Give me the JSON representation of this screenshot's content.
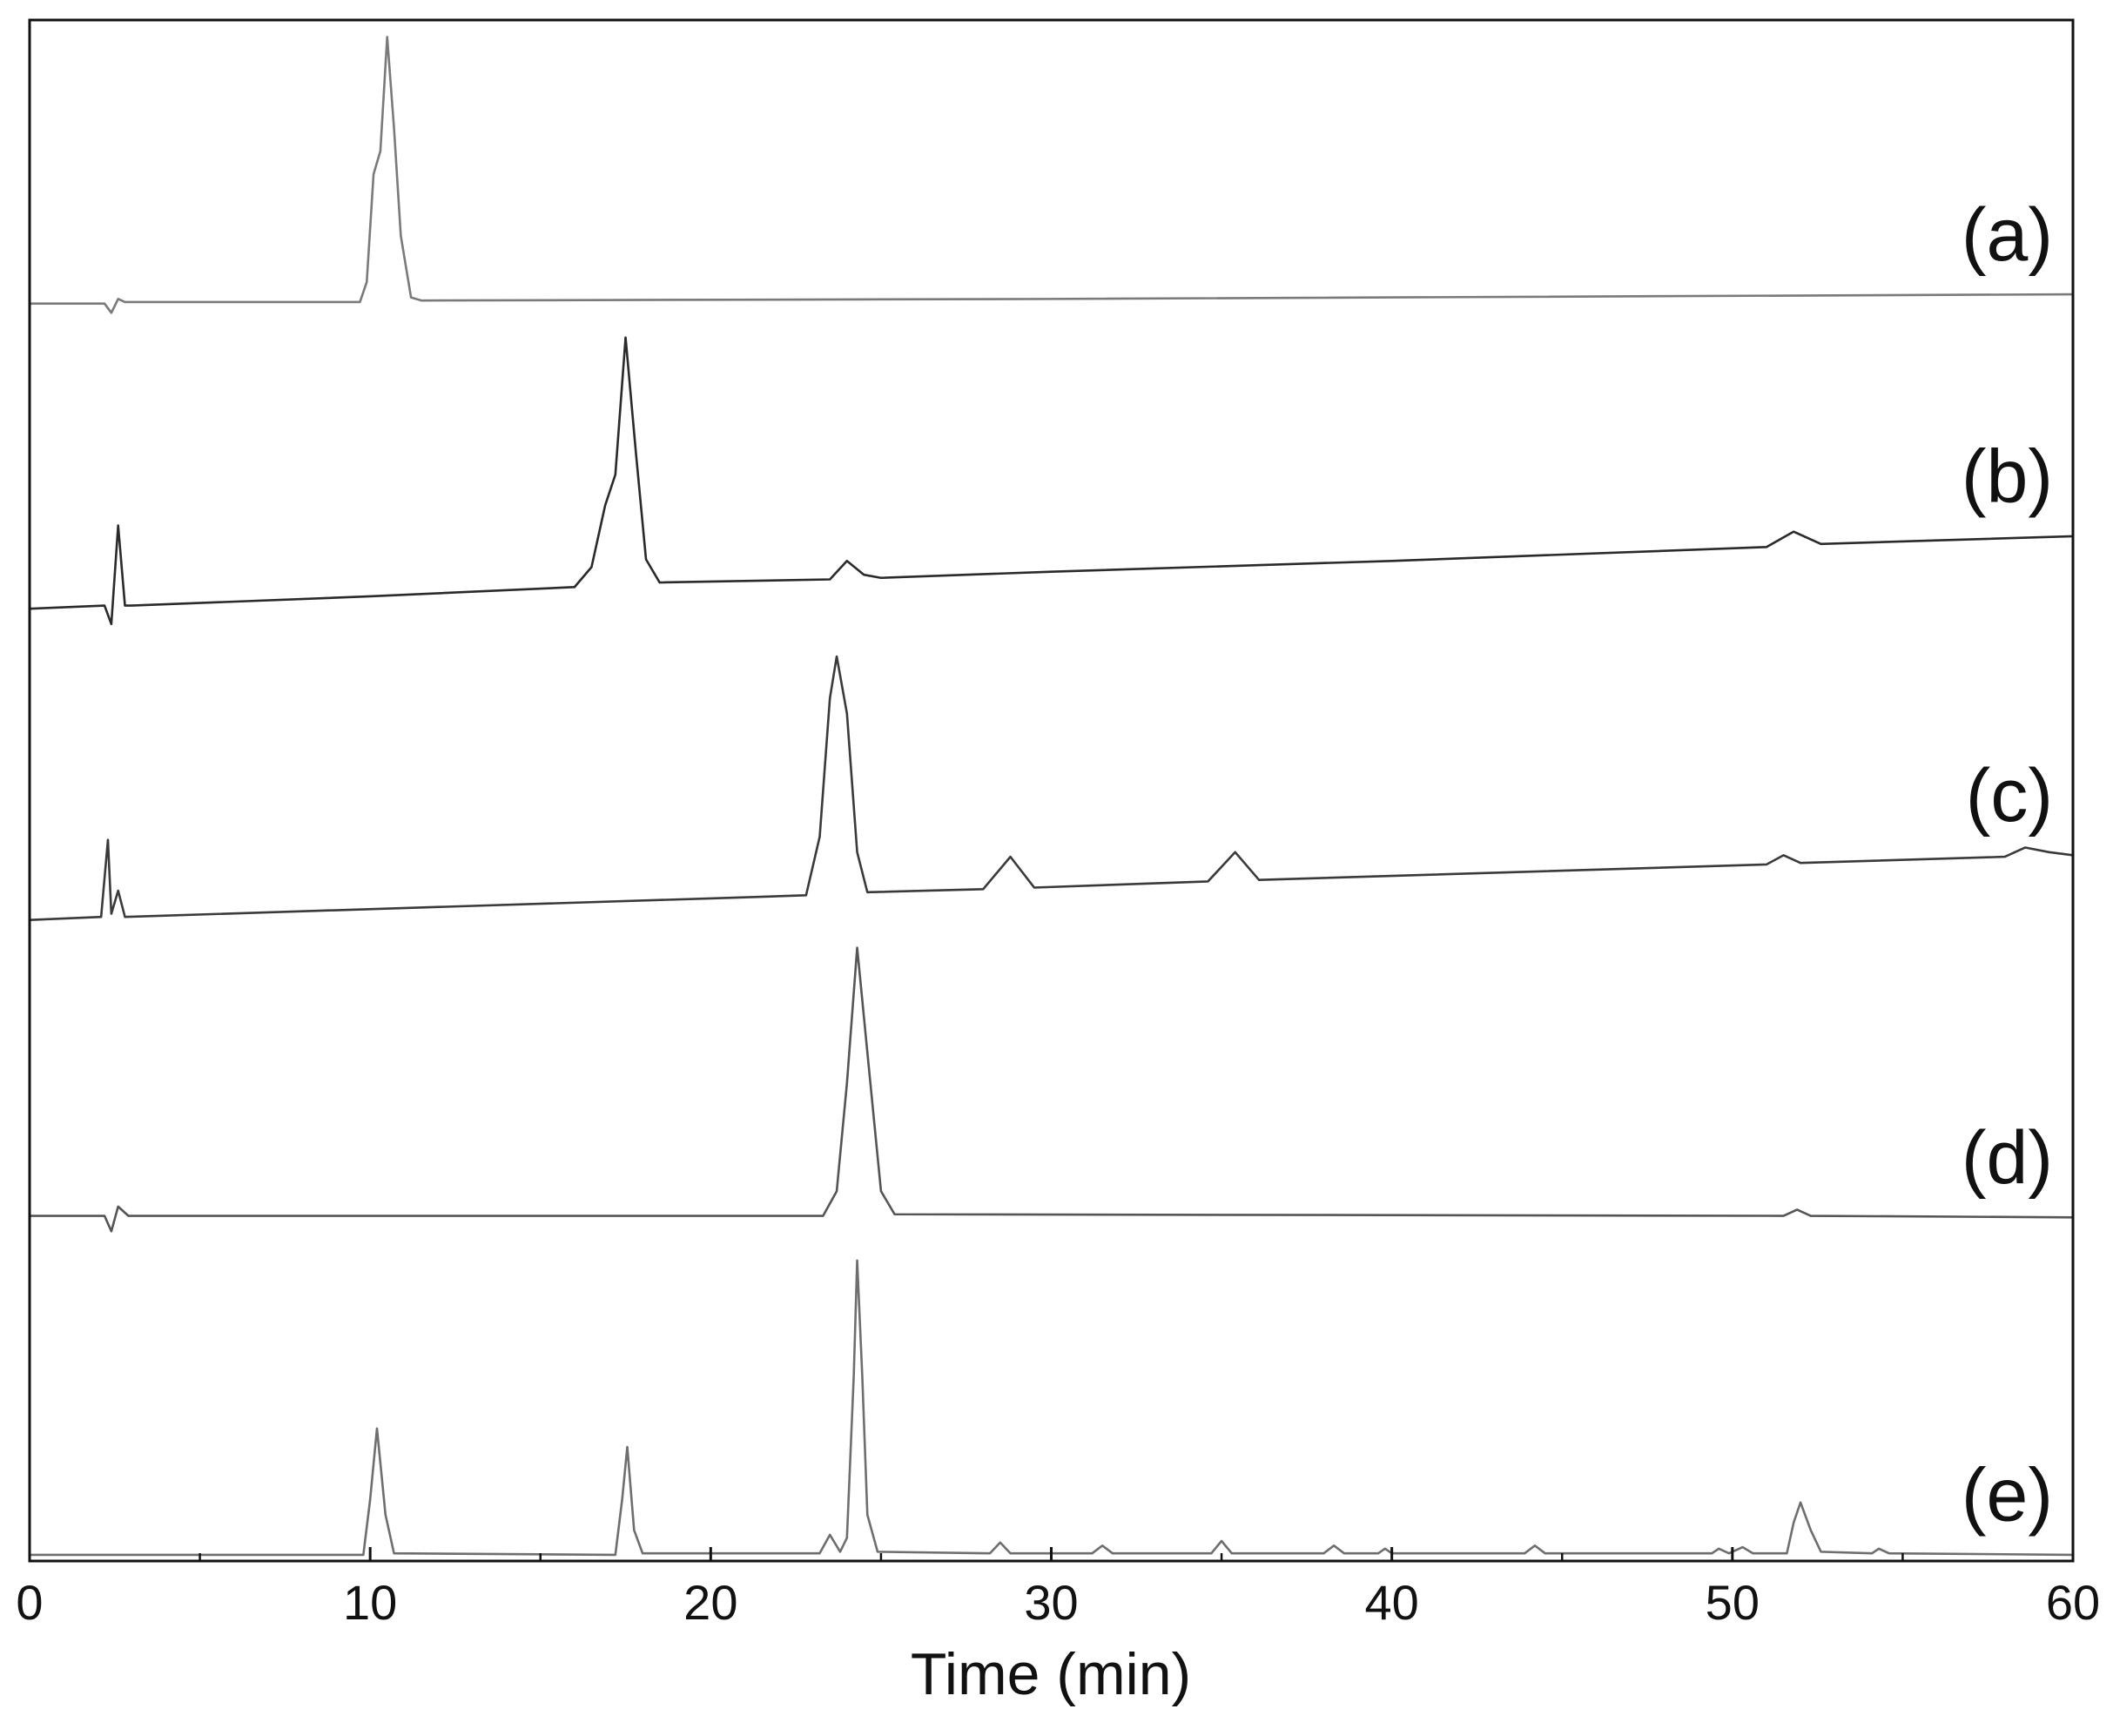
{
  "chart_data": {
    "type": "line",
    "xlabel": "Time (min)",
    "xlim": [
      0,
      60
    ],
    "xticks": [
      0,
      10,
      20,
      30,
      40,
      50,
      60
    ],
    "xminorticks": [
      5,
      15,
      25,
      35,
      45,
      55
    ],
    "ylim": [
      0,
      100
    ],
    "series": [
      {
        "name": "(a)",
        "color": "#7a7a7a",
        "x": [
          0,
          2.2,
          2.4,
          2.6,
          2.8,
          9.7,
          9.9,
          10.1,
          10.3,
          10.5,
          10.7,
          10.9,
          11.2,
          11.5,
          30,
          60
        ],
        "values": [
          81.6,
          81.6,
          81.0,
          81.9,
          81.7,
          81.7,
          83,
          90,
          91.5,
          98.9,
          93,
          86,
          82,
          81.8,
          81.9,
          82.2
        ]
      },
      {
        "name": "(b)",
        "color": "#2a2a2a",
        "x": [
          0,
          2.2,
          2.4,
          2.6,
          2.8,
          3.0,
          10,
          16,
          16.5,
          16.9,
          17.2,
          17.5,
          17.8,
          18.1,
          18.5,
          23.5,
          24,
          24.5,
          25,
          30,
          40,
          51,
          51.8,
          52.6,
          60
        ],
        "values": [
          61.8,
          62.0,
          60.8,
          67.2,
          62.0,
          62.0,
          62.6,
          63.2,
          64.5,
          68.5,
          70.5,
          79.4,
          72,
          65,
          63.5,
          63.7,
          64.9,
          64.0,
          63.8,
          64.2,
          64.9,
          65.8,
          66.8,
          66.0,
          66.5
        ]
      },
      {
        "name": "(c)",
        "color": "#3a3a3a",
        "x": [
          0,
          2.1,
          2.3,
          2.4,
          2.6,
          2.8,
          20,
          22.8,
          23.2,
          23.5,
          23.7,
          24,
          24.3,
          24.6,
          28,
          28.8,
          29.5,
          34.6,
          35.4,
          36.1,
          51,
          51.5,
          52,
          58,
          58.6,
          59.3,
          60
        ],
        "values": [
          41.6,
          41.8,
          46.8,
          42,
          43.5,
          41.8,
          43.0,
          43.2,
          47,
          56,
          58.7,
          55,
          46,
          43.4,
          43.6,
          45.7,
          43.7,
          44.1,
          46.0,
          44.2,
          45.2,
          45.8,
          45.3,
          45.7,
          46.3,
          46.0,
          45.8
        ]
      },
      {
        "name": "(d)",
        "color": "#555555",
        "x": [
          0,
          2.2,
          2.4,
          2.6,
          2.9,
          23.3,
          23.7,
          24,
          24.3,
          24.6,
          25,
          25.4,
          51.5,
          51.9,
          52.3,
          60
        ],
        "values": [
          22.4,
          22.4,
          21.4,
          23.0,
          22.4,
          22.4,
          24,
          31,
          39.8,
          33,
          24,
          22.5,
          22.4,
          22.8,
          22.4,
          22.3
        ]
      },
      {
        "name": "(e)",
        "color": "#6e6e6e",
        "x": [
          0,
          9.8,
          10.0,
          10.2,
          10.45,
          10.7,
          17.2,
          17.4,
          17.55,
          17.75,
          18.0,
          23.2,
          23.5,
          23.8,
          24.0,
          24.2,
          24.3,
          24.45,
          24.6,
          24.9,
          28.2,
          28.5,
          28.8,
          31.2,
          31.5,
          31.8,
          34.7,
          35.0,
          35.3,
          38.0,
          38.3,
          38.6,
          39.6,
          39.8,
          40.0,
          43.9,
          44.2,
          44.5,
          49.4,
          49.6,
          49.9,
          50.3,
          50.6,
          51.6,
          51.8,
          52.0,
          52.3,
          52.6,
          54.1,
          54.3,
          54.6,
          60
        ],
        "values": [
          0.4,
          0.4,
          4,
          8.6,
          3,
          0.5,
          0.4,
          4,
          7.4,
          2,
          0.5,
          0.5,
          1.7,
          0.6,
          1.5,
          12,
          19.5,
          12,
          3,
          0.6,
          0.5,
          1.2,
          0.5,
          0.5,
          1.0,
          0.5,
          0.5,
          1.3,
          0.5,
          0.5,
          1.0,
          0.5,
          0.5,
          0.8,
          0.5,
          0.5,
          1.0,
          0.5,
          0.5,
          0.8,
          0.5,
          0.9,
          0.5,
          0.5,
          2.5,
          3.8,
          2.0,
          0.6,
          0.5,
          0.8,
          0.5,
          0.4
        ]
      }
    ]
  }
}
